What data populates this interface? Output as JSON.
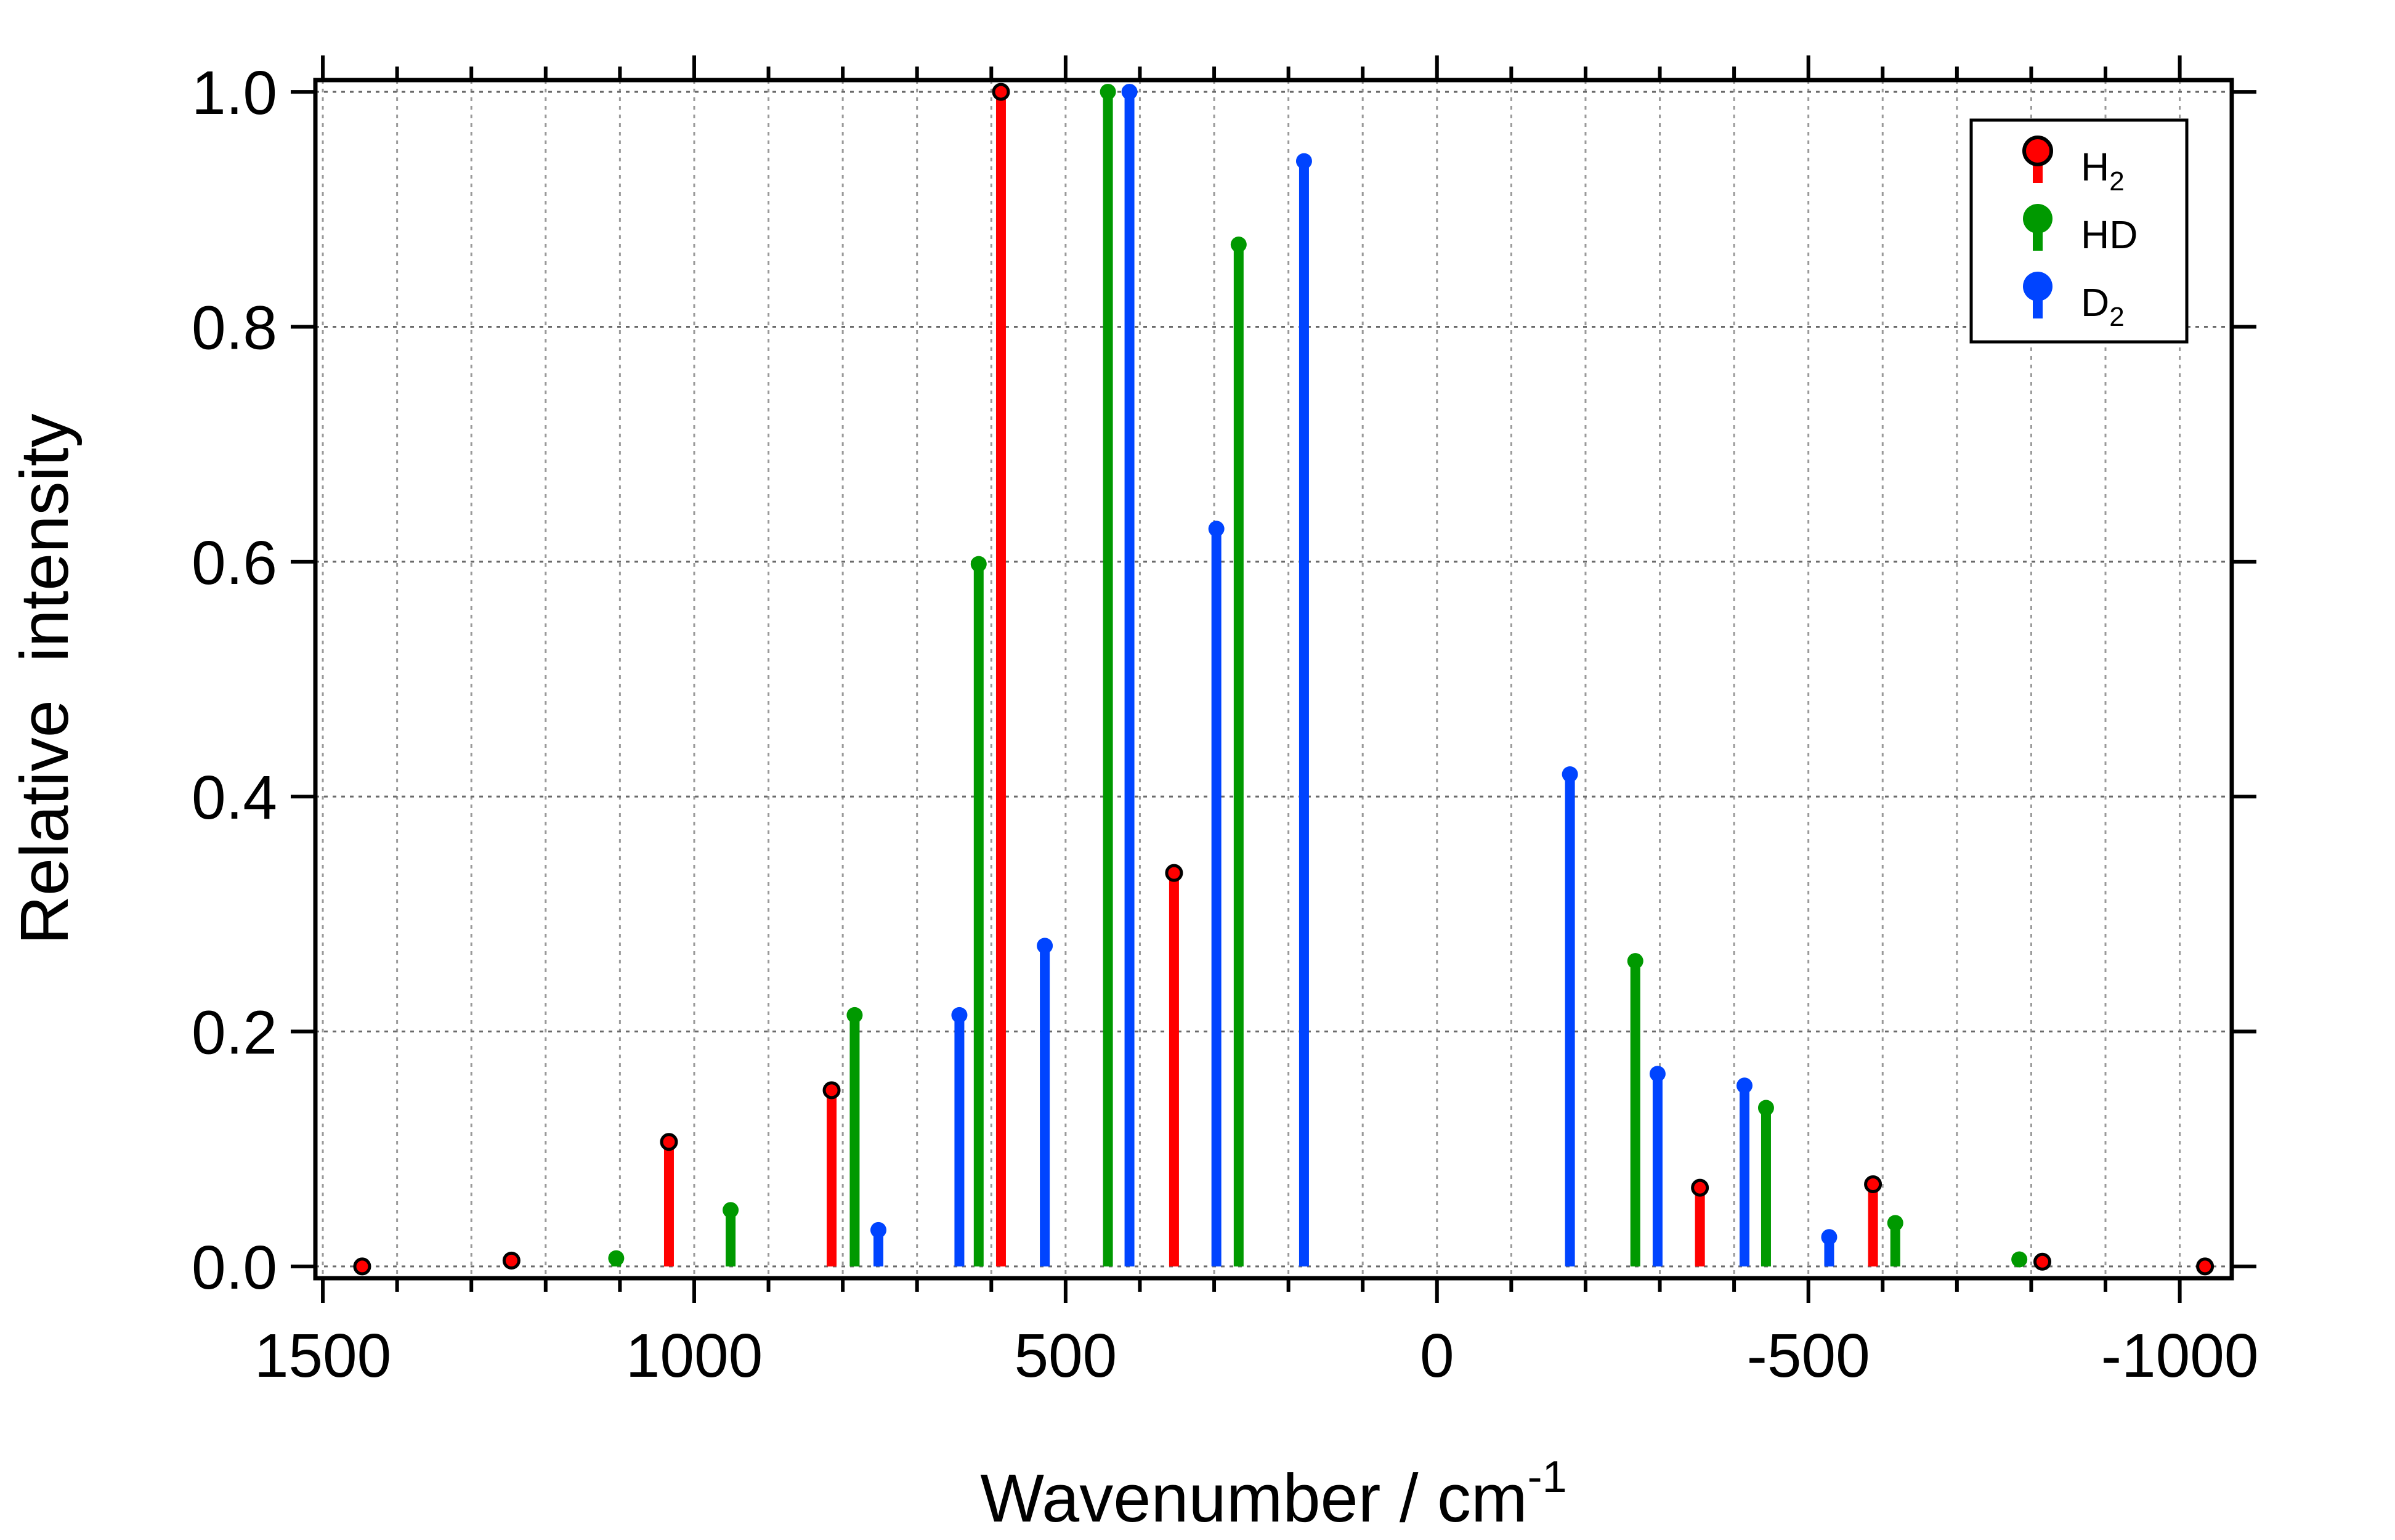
{
  "chart_data": {
    "type": "stem",
    "xlabel": "Wavenumber / cm",
    "xlabel_superscript": "-1",
    "ylabel": "Relative  intensity",
    "xlim": [
      1510,
      -1070
    ],
    "ylim": [
      -0.01,
      1.01
    ],
    "x_reversed": true,
    "x_ticks": [
      1500,
      1000,
      500,
      0,
      -500,
      -1000
    ],
    "x_tick_labels": [
      "1500",
      "1000",
      "500",
      "0",
      "-500",
      "-1000"
    ],
    "y_ticks": [
      0,
      0.2,
      0.4,
      0.6,
      0.8,
      1.0
    ],
    "y_tick_labels": [
      "0.0",
      "0.2",
      "0.4",
      "0.6",
      "0.8",
      "1.0"
    ],
    "grid": true,
    "legend_position": "top-right",
    "series": [
      {
        "name": "H",
        "subscript": "2",
        "color": "#ff0000",
        "marker": "circle-outlined",
        "points": [
          {
            "x": 1447,
            "y": 0.0
          },
          {
            "x": 1246,
            "y": 0.005
          },
          {
            "x": 1034,
            "y": 0.106
          },
          {
            "x": 815,
            "y": 0.15
          },
          {
            "x": 587,
            "y": 1.0
          },
          {
            "x": 354,
            "y": 0.335
          },
          {
            "x": -354,
            "y": 0.067
          },
          {
            "x": -587,
            "y": 0.07
          },
          {
            "x": -815,
            "y": 0.004
          },
          {
            "x": -1034,
            "y": 0.0
          }
        ]
      },
      {
        "name": "HD",
        "subscript": "",
        "color": "#009900",
        "marker": "circle",
        "points": [
          {
            "x": 1105,
            "y": 0.007
          },
          {
            "x": 951,
            "y": 0.048
          },
          {
            "x": 784,
            "y": 0.214
          },
          {
            "x": 617,
            "y": 0.598
          },
          {
            "x": 443,
            "y": 1.0
          },
          {
            "x": 267,
            "y": 0.87
          },
          {
            "x": -267,
            "y": 0.26
          },
          {
            "x": -443,
            "y": 0.135
          },
          {
            "x": -617,
            "y": 0.037
          },
          {
            "x": -784,
            "y": 0.006
          }
        ]
      },
      {
        "name": "D",
        "subscript": "2",
        "color": "#0044ff",
        "marker": "circle",
        "points": [
          {
            "x": 752,
            "y": 0.031
          },
          {
            "x": 643,
            "y": 0.214
          },
          {
            "x": 528,
            "y": 0.273
          },
          {
            "x": 414,
            "y": 1.0
          },
          {
            "x": 297,
            "y": 0.628
          },
          {
            "x": 179,
            "y": 0.941
          },
          {
            "x": -179,
            "y": 0.419
          },
          {
            "x": -297,
            "y": 0.164
          },
          {
            "x": -414,
            "y": 0.154
          },
          {
            "x": -528,
            "y": 0.025
          }
        ]
      }
    ]
  }
}
